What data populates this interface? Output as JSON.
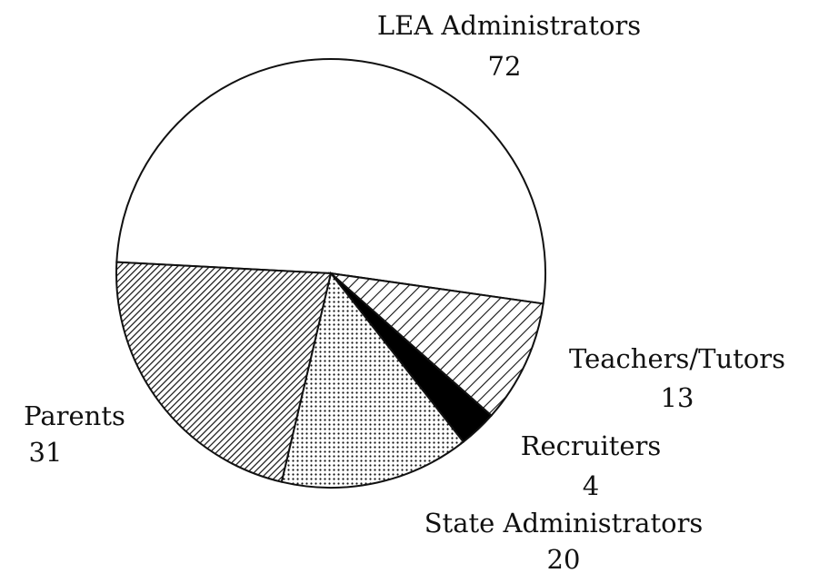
{
  "chart_data": {
    "type": "pie",
    "categories": [
      "LEA Administrators",
      "Teachers/Tutors",
      "Recruiters",
      "State Administrators",
      "Parents"
    ],
    "values": [
      72,
      13,
      4,
      20,
      31
    ],
    "patterns": [
      "none",
      "hatch",
      "solid",
      "dots",
      "dense-hatch"
    ]
  }
}
